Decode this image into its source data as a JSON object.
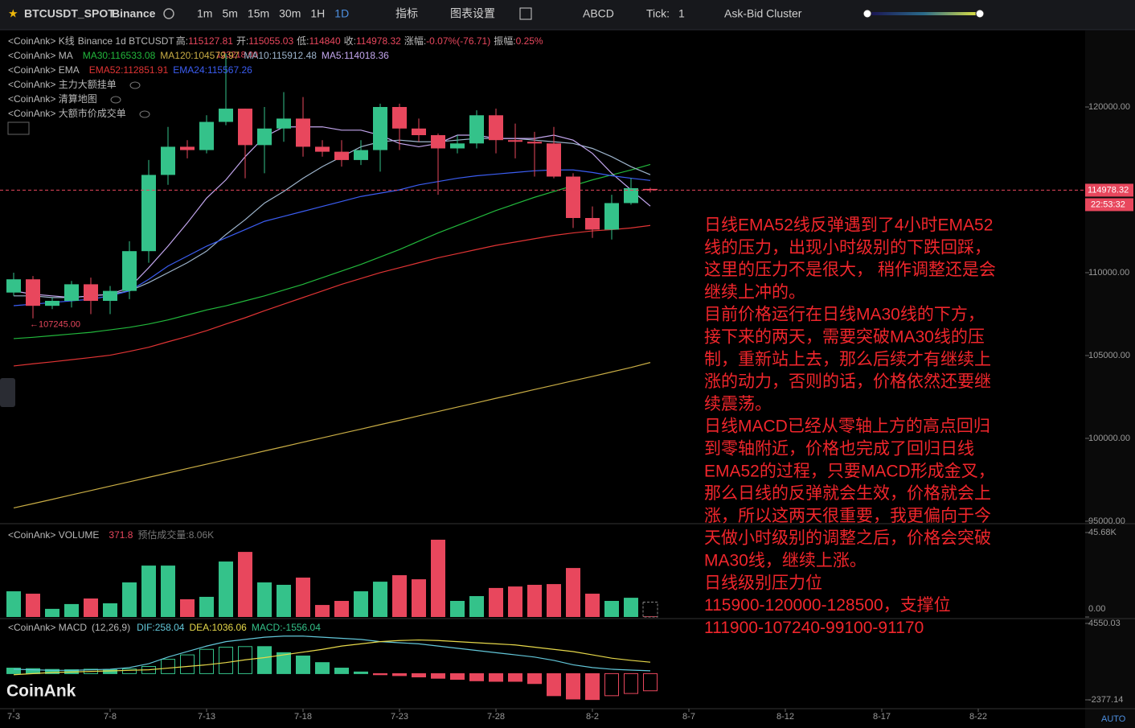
{
  "toolbar": {
    "symbol": "BTCUSDT_SPOT",
    "exchange": "Binance",
    "intervals": [
      "1m",
      "5m",
      "15m",
      "30m",
      "1H",
      "1D"
    ],
    "indicators": "指标",
    "settings": "图表设置",
    "drawing": "ABCD",
    "tick_label": "Tick:",
    "tick_value": "1",
    "cluster": "Ask-Bid Cluster"
  },
  "legends": {
    "kline": "<CoinAnk> K线",
    "market": "Binance 1d BTCUSDT",
    "ohlc_labels": [
      "高:",
      "开:",
      "低:",
      "收:"
    ],
    "change_label": "涨幅:",
    "change": "-0.07%(-76.71)",
    "amplitude_label": "振幅:",
    "amplitude": "0.25%",
    "ma": "<CoinAnk> MA",
    "ema": "<CoinAnk> EMA",
    "separator": ": ",
    "orders": "<CoinAnk> 主力大额挂单",
    "liquidation": "<CoinAnk> 清算地图",
    "trades": "<CoinAnk> 大额市价成交单",
    "volume": "<CoinAnk> VOLUME",
    "volume_estimate": "预估成交量:8.06K",
    "macd": "<CoinAnk> MACD",
    "macd_params": "(12,26,9)",
    "dif_label": "DIF:",
    "dea_label": "DEA:",
    "macd_label": "MACD:",
    "watermark": "CoinAnk",
    "auto": "AUTO"
  },
  "annotation": [
    "日线EMA52线反弹遇到了4小时EMA52",
    "线的压力，出现小时级别的下跌回踩，",
    "这里的压力不是很大， 稍作调整还是会",
    "继续上冲的。",
    "目前价格运行在日线MA30线的下方，",
    "接下来的两天，需要突破MA30线的压",
    "制，重新站上去，那么后续才有继续上",
    "涨的动力，否则的话，价格依然还要继",
    "续震荡。",
    "日线MACD已经从零轴上方的高点回归",
    "到零轴附近，价格也完成了回归日线",
    "EMA52的过程，只要MACD形成金叉，",
    "那么日线的反弹就会生效，价格就会上",
    "涨，所以这两天很重要，我更偏向于今",
    "天做小时级别的调整之后，价格会突破",
    "MA30线，继续上涨。",
    "日线级别压力位",
    "115900-120000-128500，支撑位",
    "111900-107240-99100-91170"
  ],
  "chart_data": {
    "type": "candlestick",
    "up_color": "#34c28a",
    "down_color": "#e8475d",
    "open": [
      108800,
      109600,
      108000,
      108300,
      109300,
      108300,
      108900,
      111300,
      115900,
      117600,
      117400,
      119100,
      119900,
      117700,
      118700,
      119300,
      117600,
      117300,
      116800,
      117400,
      120000,
      118700,
      118300,
      117500,
      117800,
      119500,
      118000,
      117900,
      117800,
      115800,
      113300,
      112600,
      114200,
      115055.03
    ],
    "high": [
      110000,
      109800,
      108500,
      109500,
      109700,
      109200,
      111900,
      116800,
      118800,
      118000,
      119500,
      123218,
      119900,
      120000,
      120900,
      120600,
      118000,
      118000,
      118000,
      120200,
      120200,
      119300,
      118400,
      118300,
      119800,
      119900,
      119000,
      118500,
      118800,
      116000,
      114000,
      114700,
      115700,
      115127.81
    ],
    "low": [
      108600,
      107245,
      107800,
      107900,
      107500,
      107500,
      108400,
      110600,
      115300,
      116900,
      117200,
      118900,
      115700,
      116000,
      117900,
      117000,
      117000,
      116400,
      116500,
      116100,
      117400,
      117900,
      114700,
      117200,
      117500,
      117200,
      116900,
      115800,
      115700,
      112700,
      112100,
      112000,
      114100,
      114840
    ],
    "close": [
      109600,
      108000,
      108300,
      109300,
      108300,
      108900,
      111300,
      115900,
      117600,
      117400,
      119100,
      119900,
      117700,
      118700,
      119300,
      117600,
      117300,
      116800,
      117400,
      120000,
      118700,
      118300,
      117500,
      117800,
      119500,
      118000,
      117900,
      117800,
      115800,
      113300,
      112600,
      114200,
      115100,
      114978.32
    ],
    "max_label": "123218.00",
    "min_label": "←107245.00",
    "countdown": "22:53:32",
    "ma_lines": [
      {
        "name": "MA30",
        "color": "#22b83c",
        "values": [
          106020,
          106100,
          106200,
          106300,
          106400,
          106550,
          106700,
          106900,
          107150,
          107450,
          107750,
          108000,
          108300,
          108600,
          108950,
          109300,
          109700,
          110100,
          110500,
          110950,
          111400,
          111900,
          112400,
          112850,
          113300,
          113750,
          114150,
          114550,
          114900,
          115250,
          115600,
          115900,
          116200,
          116533.08
        ]
      },
      {
        "name": "MA120",
        "color": "#c9ad45",
        "values": [
          95800,
          96060,
          96320,
          96590,
          96850,
          97120,
          97380,
          97650,
          97910,
          98180,
          98440,
          98710,
          98970,
          99240,
          99500,
          99770,
          100030,
          100300,
          100560,
          100830,
          101090,
          101360,
          101620,
          101890,
          102150,
          102420,
          102680,
          102950,
          103210,
          103480,
          103740,
          104010,
          104280,
          104579.97
        ]
      },
      {
        "name": "MA10",
        "color": "#9db4cc",
        "values": [
          108600,
          108600,
          108500,
          108500,
          108600,
          108700,
          108900,
          109400,
          110000,
          110600,
          111300,
          112300,
          113200,
          114200,
          114900,
          115700,
          116400,
          117000,
          117600,
          117900,
          118000,
          117900,
          117900,
          118000,
          118100,
          118100,
          118100,
          118000,
          117900,
          117800,
          117500,
          117000,
          116400,
          115912.48
        ]
      },
      {
        "name": "MA5",
        "color": "#c3a6ee",
        "values": [
          108900,
          108700,
          108600,
          108500,
          108600,
          108700,
          109100,
          110300,
          111600,
          113000,
          114500,
          115600,
          117000,
          118200,
          118800,
          118800,
          118800,
          118600,
          118600,
          118300,
          117800,
          117600,
          117800,
          118300,
          118300,
          118100,
          118100,
          118100,
          118300,
          118000,
          117200,
          116000,
          115000,
          114018.36
        ]
      }
    ],
    "ema_lines": [
      {
        "name": "EMA52",
        "color": "#e03434",
        "values": [
          104370,
          104500,
          104620,
          104750,
          104880,
          105020,
          105250,
          105500,
          105830,
          106150,
          106500,
          106900,
          107280,
          107700,
          108100,
          108500,
          108900,
          109300,
          109650,
          110000,
          110300,
          110600,
          110900,
          111150,
          111400,
          111650,
          111850,
          112050,
          112250,
          112400,
          112520,
          112600,
          112700,
          112851.91
        ]
      },
      {
        "name": "EMA24",
        "color": "#3b5df2",
        "values": [
          108010,
          108100,
          108200,
          108300,
          108400,
          108600,
          108900,
          109600,
          110400,
          111000,
          111600,
          112100,
          112600,
          113100,
          113400,
          113700,
          114000,
          114300,
          114600,
          114800,
          115000,
          115300,
          115500,
          115700,
          115850,
          115950,
          116050,
          116150,
          116200,
          116200,
          116050,
          115850,
          115700,
          115567.26
        ]
      }
    ],
    "ylim": [
      94900,
      124515
    ],
    "yticks": [
      {
        "value": 95000,
        "label": "95000.00"
      },
      {
        "value": 100000,
        "label": "100000.00"
      },
      {
        "value": 105000,
        "label": "105000.00"
      },
      {
        "value": 110000,
        "label": "110000.00"
      },
      {
        "value": 120000,
        "label": "120000.00"
      }
    ],
    "xticks": [
      {
        "value": 0,
        "label": "7-3"
      },
      {
        "value": 5,
        "label": "7-8"
      },
      {
        "value": 10,
        "label": "7-13"
      },
      {
        "value": 15,
        "label": "7-18"
      },
      {
        "value": 20,
        "label": "7-23"
      },
      {
        "value": 25,
        "label": "7-28"
      },
      {
        "value": 30,
        "label": "8-2"
      },
      {
        "value": 35,
        "label": "8-7"
      },
      {
        "value": 40,
        "label": "8-12"
      },
      {
        "value": 45,
        "label": "8-17"
      },
      {
        "value": 50,
        "label": "8-22"
      }
    ],
    "volume": {
      "values": [
        13900,
        12600,
        4400,
        7000,
        10000,
        7400,
        18700,
        27800,
        27800,
        9600,
        10900,
        30000,
        35200,
        18700,
        17400,
        21300,
        6500,
        8700,
        13900,
        19100,
        22600,
        20400,
        41800,
        8700,
        11300,
        15700,
        16500,
        17400,
        17800,
        26500,
        12600,
        8700,
        10400,
        371.8
      ],
      "estimate": 8060,
      "ylim": [
        0,
        47860
      ],
      "yticks": [
        {
          "value": 0,
          "label": "0.00"
        },
        {
          "value": 45680,
          "label": "45.68K"
        }
      ]
    },
    "macd": {
      "histogram": [
        500,
        450,
        380,
        350,
        400,
        350,
        420,
        650,
        1300,
        1700,
        2200,
        2400,
        2450,
        2450,
        1900,
        1600,
        1000,
        500,
        150,
        -100,
        -180,
        -300,
        -420,
        -520,
        -650,
        -700,
        -700,
        -900,
        -2000,
        -2300,
        -2350,
        -2000,
        -1800,
        -1556.04
      ],
      "dif": {
        "color": "#62c6d8",
        "values": [
          400,
          350,
          300,
          300,
          350,
          400,
          550,
          900,
          1500,
          2000,
          2500,
          2900,
          3100,
          3300,
          3400,
          3400,
          3300,
          3200,
          3100,
          2900,
          2800,
          2700,
          2500,
          2300,
          2100,
          1900,
          1700,
          1500,
          1200,
          800,
          550,
          400,
          320,
          258.04
        ]
      },
      "dea": {
        "color": "#e6d84a",
        "values": [
          -100,
          0,
          100,
          150,
          200,
          250,
          300,
          350,
          500,
          650,
          800,
          1000,
          1250,
          1450,
          1700,
          1950,
          2200,
          2500,
          2700,
          2900,
          3000,
          3050,
          3000,
          2900,
          2800,
          2700,
          2600,
          2400,
          2200,
          2000,
          1700,
          1400,
          1200,
          1036.06
        ]
      },
      "ylim": [
        -3106,
        4769
      ],
      "yticks": [
        4550.03,
        -2377.14
      ]
    }
  }
}
